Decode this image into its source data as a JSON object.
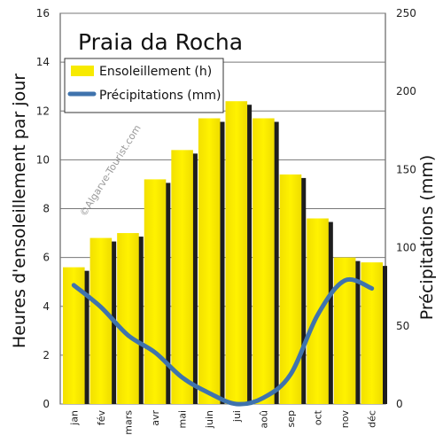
{
  "chart_data": {
    "type": "bar",
    "title": "Praia da Rocha",
    "watermark": "©Algarve-Tourist.com",
    "categories": [
      "jan",
      "fév",
      "mars",
      "avr",
      "mai",
      "juin",
      "jui",
      "aoû",
      "sep",
      "oct",
      "nov",
      "déc"
    ],
    "series": [
      {
        "name": "Ensoleillement (h)",
        "type": "bar",
        "axis": "left",
        "color": "#f7ea00",
        "values": [
          5.6,
          6.8,
          7.0,
          9.2,
          10.4,
          11.7,
          12.4,
          11.7,
          9.4,
          7.6,
          6.0,
          5.8
        ]
      },
      {
        "name": "Précipitations (mm)",
        "type": "line",
        "axis": "right",
        "color": "#3f73ad",
        "values": [
          76,
          62,
          44,
          33,
          17,
          7,
          0,
          4,
          19,
          57,
          79,
          74
        ]
      }
    ],
    "ylabel": "Heures d'ensoleillement par jour",
    "ylabel_right": "Précipitations (mm)",
    "ylim": [
      0,
      16
    ],
    "ylim_right": [
      0,
      250
    ],
    "yticks": [
      "0",
      "2",
      "4",
      "6",
      "8",
      "10",
      "12",
      "14",
      "16"
    ],
    "yticks_right": [
      "0",
      "50",
      "100",
      "150",
      "200",
      "250"
    ],
    "grid": true,
    "legend_position": "top-left"
  }
}
